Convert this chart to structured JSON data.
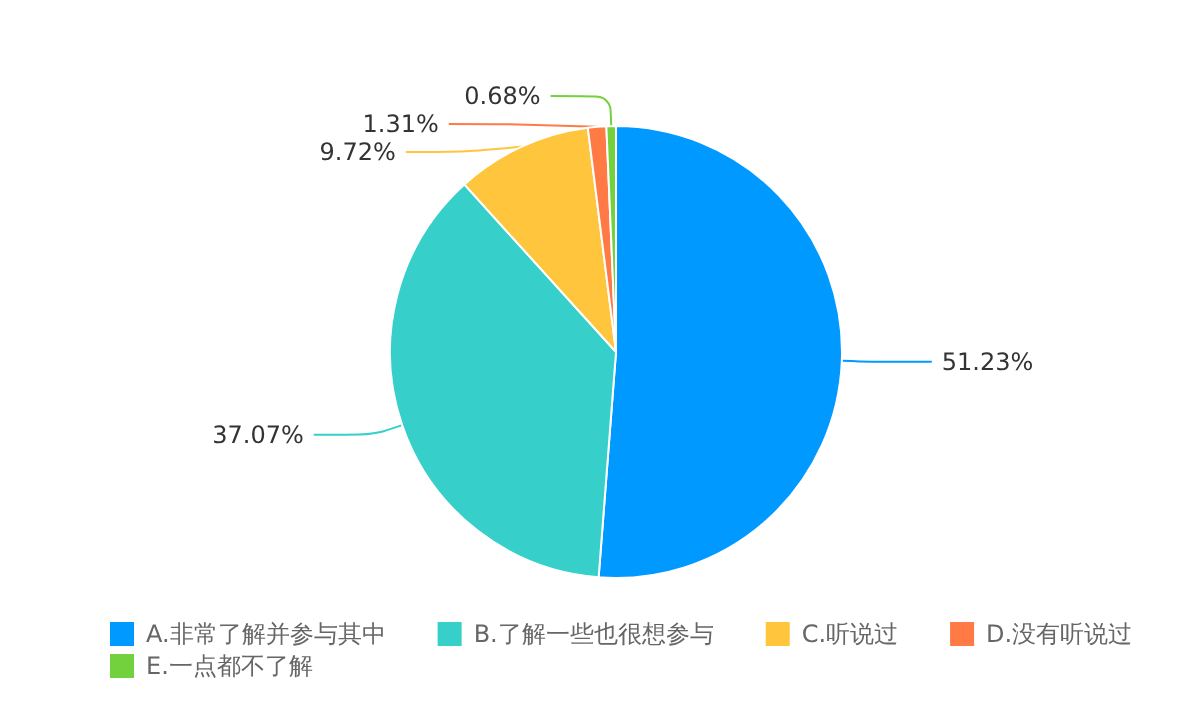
{
  "chart_data": {
    "type": "pie",
    "categories": [
      "A.非常了解并参与其中",
      "B.了解一些也很想参与",
      "C.听说过",
      "D.没有听说过",
      "E.一点都不了解"
    ],
    "values": [
      51.23,
      37.07,
      9.72,
      1.31,
      0.68
    ],
    "colors": [
      "#0099ff",
      "#36cfc9",
      "#ffc53d",
      "#ff7a45",
      "#73d13d"
    ],
    "value_labels": [
      "51.23%",
      "37.07%",
      "9.72%",
      "1.31%",
      "0.68%"
    ],
    "legend": "bottom"
  }
}
